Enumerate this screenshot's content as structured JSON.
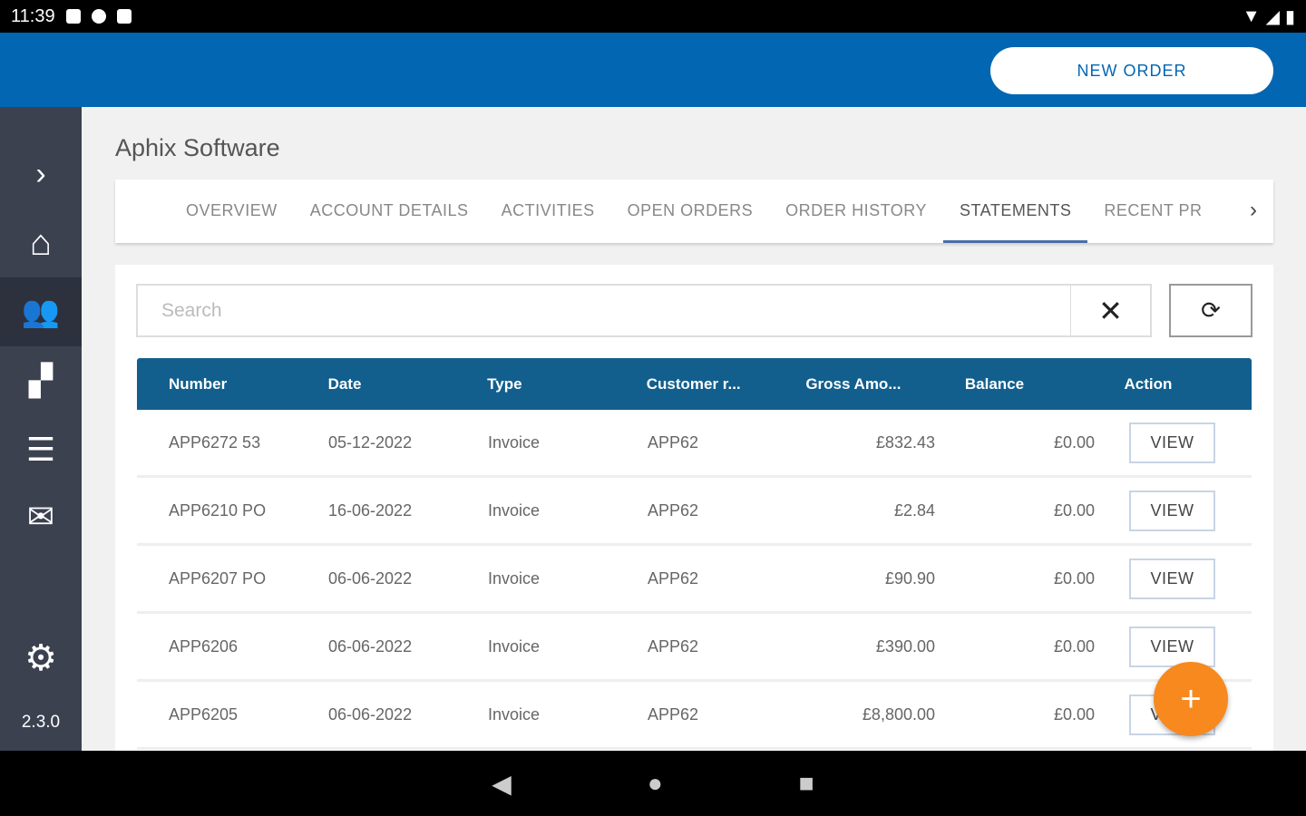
{
  "status": {
    "time": "11:39"
  },
  "header": {
    "new_order": "NEW ORDER"
  },
  "sidebar": {
    "version": "2.3.0",
    "items": [
      "expand",
      "home",
      "customers",
      "products",
      "list",
      "mail",
      "settings"
    ]
  },
  "page": {
    "title": "Aphix Software"
  },
  "tabs": [
    {
      "label": "OVERVIEW"
    },
    {
      "label": "ACCOUNT DETAILS"
    },
    {
      "label": "ACTIVITIES"
    },
    {
      "label": "OPEN ORDERS"
    },
    {
      "label": "ORDER HISTORY"
    },
    {
      "label": "STATEMENTS",
      "active": true
    },
    {
      "label": "RECENT PR"
    }
  ],
  "search": {
    "placeholder": "Search",
    "value": ""
  },
  "table": {
    "columns": [
      "Number",
      "Date",
      "Type",
      "Customer r...",
      "Gross Amo...",
      "Balance",
      "Action"
    ],
    "rows": [
      [
        "APP6272 53",
        "05-12-2022",
        "Invoice",
        "APP62",
        "£832.43",
        "£0.00",
        "VIEW"
      ],
      [
        "APP6210 PO",
        "16-06-2022",
        "Invoice",
        "APP62",
        "£2.84",
        "£0.00",
        "VIEW"
      ],
      [
        "APP6207 PO",
        "06-06-2022",
        "Invoice",
        "APP62",
        "£90.90",
        "£0.00",
        "VIEW"
      ],
      [
        "APP6206",
        "06-06-2022",
        "Invoice",
        "APP62",
        "£390.00",
        "£0.00",
        "VIEW"
      ],
      [
        "APP6205",
        "06-06-2022",
        "Invoice",
        "APP62",
        "£8,800.00",
        "£0.00",
        "VIEW"
      ]
    ]
  },
  "colors": {
    "header": "#0266b2",
    "sidebar": "#3c4150",
    "table_header": "#125f8e",
    "fab": "#f7891f"
  }
}
